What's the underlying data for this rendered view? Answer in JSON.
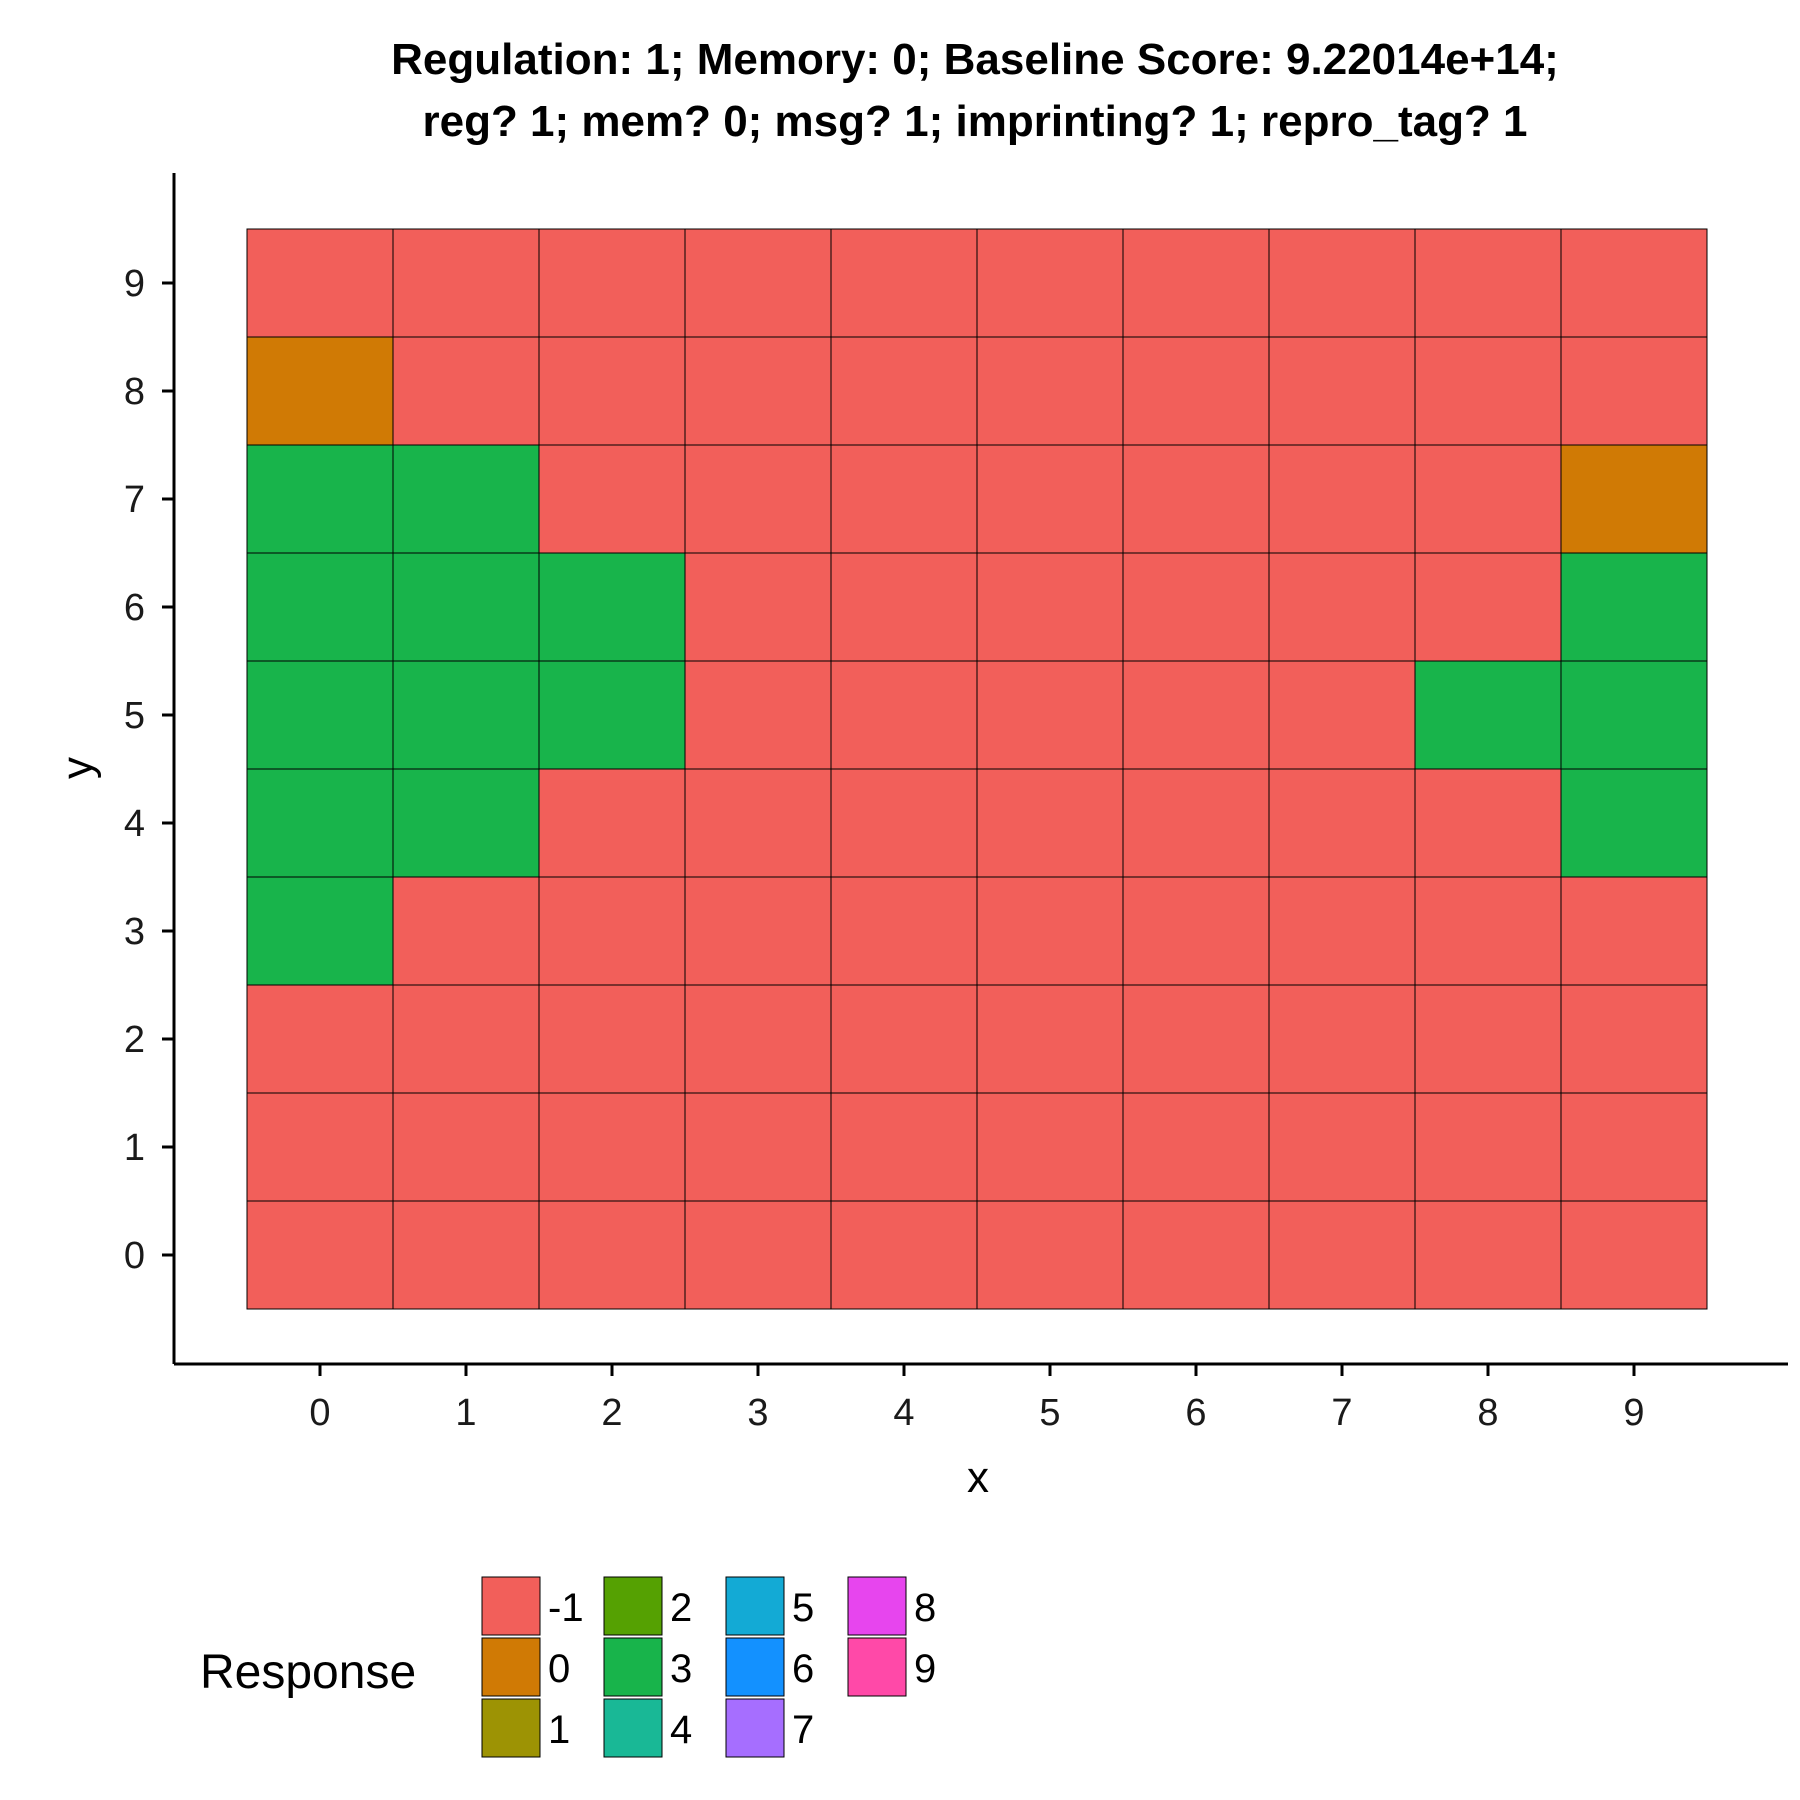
{
  "chart_data": {
    "type": "heatmap",
    "title_line1": "Regulation: 1; Memory: 0; Baseline Score: 9.22014e+14;",
    "title_line2": "reg? 1; mem? 0; msg? 1; imprinting? 1; repro_tag? 1",
    "xlabel": "x",
    "ylabel": "y",
    "x_ticks": [
      "0",
      "1",
      "2",
      "3",
      "4",
      "5",
      "6",
      "7",
      "8",
      "9"
    ],
    "y_ticks": [
      "0",
      "1",
      "2",
      "3",
      "4",
      "5",
      "6",
      "7",
      "8",
      "9"
    ],
    "grid": false,
    "legend_position": "bottom",
    "legend_title": "Response",
    "legend": [
      {
        "label": "-1",
        "color": "#F25F5A"
      },
      {
        "label": "0",
        "color": "#D07A05"
      },
      {
        "label": "1",
        "color": "#9D9304"
      },
      {
        "label": "2",
        "color": "#55A102"
      },
      {
        "label": "3",
        "color": "#18B44B"
      },
      {
        "label": "4",
        "color": "#19B896"
      },
      {
        "label": "5",
        "color": "#13AAD5"
      },
      {
        "label": "6",
        "color": "#1391FF"
      },
      {
        "label": "7",
        "color": "#A66EFF"
      },
      {
        "label": "8",
        "color": "#E745EE"
      },
      {
        "label": "9",
        "color": "#FF49A8"
      }
    ],
    "rows_top_to_bottom_y": [
      9,
      8,
      7,
      6,
      5,
      4,
      3,
      2,
      1,
      0
    ],
    "values_top_to_bottom": [
      [
        -1,
        -1,
        -1,
        -1,
        -1,
        -1,
        -1,
        -1,
        -1,
        -1
      ],
      [
        0,
        -1,
        -1,
        -1,
        -1,
        -1,
        -1,
        -1,
        -1,
        -1
      ],
      [
        3,
        3,
        -1,
        -1,
        -1,
        -1,
        -1,
        -1,
        -1,
        0
      ],
      [
        3,
        3,
        3,
        -1,
        -1,
        -1,
        -1,
        -1,
        -1,
        3
      ],
      [
        3,
        3,
        3,
        -1,
        -1,
        -1,
        -1,
        -1,
        3,
        3
      ],
      [
        3,
        3,
        -1,
        -1,
        -1,
        -1,
        -1,
        -1,
        -1,
        3
      ],
      [
        3,
        -1,
        -1,
        -1,
        -1,
        -1,
        -1,
        -1,
        -1,
        -1
      ],
      [
        -1,
        -1,
        -1,
        -1,
        -1,
        -1,
        -1,
        -1,
        -1,
        -1
      ],
      [
        -1,
        -1,
        -1,
        -1,
        -1,
        -1,
        -1,
        -1,
        -1,
        -1
      ],
      [
        -1,
        -1,
        -1,
        -1,
        -1,
        -1,
        -1,
        -1,
        -1,
        -1
      ]
    ]
  }
}
